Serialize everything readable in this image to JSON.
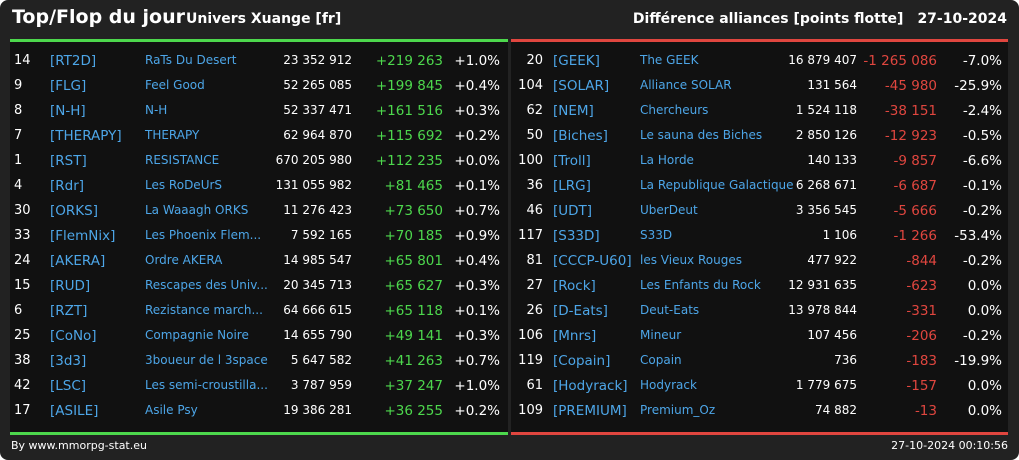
{
  "header": {
    "title": "Top/Flop du jour",
    "universe": "Univers Xuange [fr]",
    "metric": "Différence alliances [points flotte]",
    "date": "27-10-2024"
  },
  "colors": {
    "background": "#222222",
    "panel": "#111111",
    "top_accent": "#4dd84d",
    "flop_accent": "#e0463f",
    "link": "#4da6e8",
    "positive": "#4dd84d",
    "negative": "#e0463f"
  },
  "top": [
    {
      "rank": "14",
      "tag": "[RT2D]",
      "name": "RaTs Du Desert",
      "points": "23 352 912",
      "diff": "+219 263",
      "pct": "+1.0%"
    },
    {
      "rank": "9",
      "tag": "[FLG]",
      "name": "Feel Good",
      "points": "52 265 085",
      "diff": "+199 845",
      "pct": "+0.4%"
    },
    {
      "rank": "8",
      "tag": "[N-H]",
      "name": "N-H",
      "points": "52 337 471",
      "diff": "+161 516",
      "pct": "+0.3%"
    },
    {
      "rank": "7",
      "tag": "[THERAPY]",
      "name": "THERAPY",
      "points": "62 964 870",
      "diff": "+115 692",
      "pct": "+0.2%"
    },
    {
      "rank": "1",
      "tag": "[RST]",
      "name": "RESISTANCE",
      "points": "670 205 980",
      "diff": "+112 235",
      "pct": "+0.0%"
    },
    {
      "rank": "4",
      "tag": "[Rdr]",
      "name": "Les RoDeUrS",
      "points": "131 055 982",
      "diff": "+81 465",
      "pct": "+0.1%"
    },
    {
      "rank": "30",
      "tag": "[ORKS]",
      "name": "La Waaagh ORKS",
      "points": "11 276 423",
      "diff": "+73 650",
      "pct": "+0.7%"
    },
    {
      "rank": "33",
      "tag": "[FlemNix]",
      "name": "Les Phoenix Flem...",
      "points": "7 592 165",
      "diff": "+70 185",
      "pct": "+0.9%"
    },
    {
      "rank": "24",
      "tag": "[AKERA]",
      "name": "Ordre AKERA",
      "points": "14 985 547",
      "diff": "+65 801",
      "pct": "+0.4%"
    },
    {
      "rank": "15",
      "tag": "[RUD]",
      "name": "Rescapes des Univ...",
      "points": "20 345 713",
      "diff": "+65 627",
      "pct": "+0.3%"
    },
    {
      "rank": "6",
      "tag": "[RZT]",
      "name": "Rezistance march...",
      "points": "64 666 615",
      "diff": "+65 118",
      "pct": "+0.1%"
    },
    {
      "rank": "25",
      "tag": "[CoNo]",
      "name": "Compagnie Noire",
      "points": "14 655 790",
      "diff": "+49 141",
      "pct": "+0.3%"
    },
    {
      "rank": "38",
      "tag": "[3d3]",
      "name": "3boueur de l 3space",
      "points": "5 647 582",
      "diff": "+41 263",
      "pct": "+0.7%"
    },
    {
      "rank": "42",
      "tag": "[LSC]",
      "name": "Les semi-croustilla...",
      "points": "3 787 959",
      "diff": "+37 247",
      "pct": "+1.0%"
    },
    {
      "rank": "17",
      "tag": "[ASILE]",
      "name": "Asile Psy",
      "points": "19 386 281",
      "diff": "+36 255",
      "pct": "+0.2%"
    }
  ],
  "flop": [
    {
      "rank": "20",
      "tag": "[GEEK]",
      "name": "The GEEK",
      "points": "16 879 407",
      "diff": "-1 265 086",
      "pct": "-7.0%"
    },
    {
      "rank": "104",
      "tag": "[SOLAR]",
      "name": "Alliance SOLAR",
      "points": "131 564",
      "diff": "-45 980",
      "pct": "-25.9%"
    },
    {
      "rank": "62",
      "tag": "[NEM]",
      "name": "Chercheurs",
      "points": "1 524 118",
      "diff": "-38 151",
      "pct": "-2.4%"
    },
    {
      "rank": "50",
      "tag": "[Biches]",
      "name": "Le sauna des Biches",
      "points": "2 850 126",
      "diff": "-12 923",
      "pct": "-0.5%"
    },
    {
      "rank": "100",
      "tag": "[Troll]",
      "name": "La Horde",
      "points": "140 133",
      "diff": "-9 857",
      "pct": "-6.6%"
    },
    {
      "rank": "36",
      "tag": "[LRG]",
      "name": "La Republique Galactique",
      "points": "6 268 671",
      "diff": "-6 687",
      "pct": "-0.1%"
    },
    {
      "rank": "46",
      "tag": "[UDT]",
      "name": "UberDeut",
      "points": "3 356 545",
      "diff": "-5 666",
      "pct": "-0.2%"
    },
    {
      "rank": "117",
      "tag": "[S33D]",
      "name": "S33D",
      "points": "1 106",
      "diff": "-1 266",
      "pct": "-53.4%"
    },
    {
      "rank": "81",
      "tag": "[CCCP-U60]",
      "name": "les Vieux Rouges",
      "points": "477 922",
      "diff": "-844",
      "pct": "-0.2%"
    },
    {
      "rank": "27",
      "tag": "[Rock]",
      "name": "Les Enfants du Rock",
      "points": "12 931 635",
      "diff": "-623",
      "pct": "0.0%"
    },
    {
      "rank": "26",
      "tag": "[D-Eats]",
      "name": "Deut-Eats",
      "points": "13 978 844",
      "diff": "-331",
      "pct": "0.0%"
    },
    {
      "rank": "106",
      "tag": "[Mnrs]",
      "name": "Mineur",
      "points": "107 456",
      "diff": "-206",
      "pct": "-0.2%"
    },
    {
      "rank": "119",
      "tag": "[Copain]",
      "name": "Copain",
      "points": "736",
      "diff": "-183",
      "pct": "-19.9%"
    },
    {
      "rank": "61",
      "tag": "[Hodyrack]",
      "name": "Hodyrack",
      "points": "1 779 675",
      "diff": "-157",
      "pct": "0.0%"
    },
    {
      "rank": "109",
      "tag": "[PREMIUM]",
      "name": "Premium_Oz",
      "points": "74 882",
      "diff": "-13",
      "pct": "0.0%"
    }
  ],
  "footer": {
    "credit": "By www.mmorpg-stat.eu",
    "timestamp": "27-10-2024 00:10:56"
  }
}
